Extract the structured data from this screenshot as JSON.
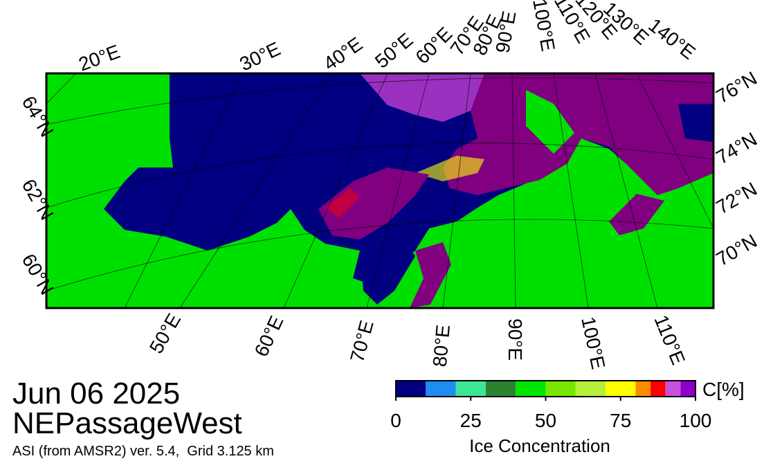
{
  "header": {
    "date": "Jun 06 2025",
    "region": "NEPassageWest",
    "source": "ASI (from AMSR2) ver. 5.4,  Grid 3.125 km"
  },
  "map": {
    "lon_labels_top": [
      "20°E",
      "30°E",
      "40°E",
      "50°E",
      "60°E",
      "70°E",
      "80°E",
      "90°E",
      "100°E",
      "110°E",
      "120°E",
      "130°E",
      "140°E"
    ],
    "lon_labels_bottom": [
      "50°E",
      "60°E",
      "70°E",
      "80°E",
      "90°E",
      "100°E",
      "110°E"
    ],
    "lat_labels_left": [
      "64°N",
      "62°N",
      "60°N"
    ],
    "lat_labels_right": [
      "76°N",
      "74°N",
      "72°N",
      "70°N"
    ]
  },
  "colorbar": {
    "label": "Ice Concentration",
    "unit": "C[%]",
    "lim": [
      0,
      100
    ],
    "ticks": [
      0,
      25,
      50,
      75,
      100
    ],
    "bounds": [
      0,
      10,
      20,
      30,
      40,
      50,
      60,
      70,
      80,
      85,
      90,
      95,
      100
    ],
    "colors": [
      "#000080",
      "#1e8cf0",
      "#3ce696",
      "#2d8232",
      "#00e600",
      "#78e600",
      "#b4f03c",
      "#ffff00",
      "#ff8c00",
      "#ff0000",
      "#c850dc",
      "#8c00c8"
    ]
  }
}
